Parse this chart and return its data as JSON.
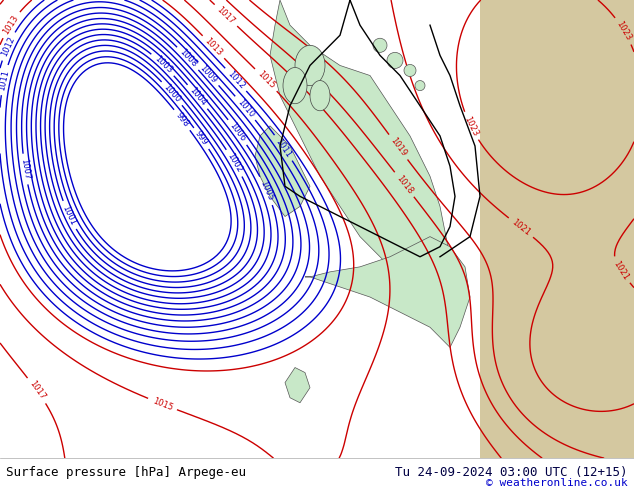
{
  "title_left": "Surface pressure [hPa] Arpege-eu",
  "title_right": "Tu 24-09-2024 03:00 UTC (12+15)",
  "copyright": "© weatheronline.co.uk",
  "bg_color_main": "#e8e8e8",
  "bg_color_land": "#c8e8c8",
  "bg_color_sea": "#ddeeff",
  "bg_color_right": "#d4c8a0",
  "bg_color_bottom_bar": "#ffffff",
  "text_color_left": "#000000",
  "text_color_right": "#000044",
  "text_color_copyright": "#0000cc",
  "contour_color_low": "#0000cc",
  "contour_color_high": "#cc0000",
  "contour_color_border": "#000000",
  "bottom_bar_height": 30,
  "fig_width": 6.34,
  "fig_height": 4.9,
  "dpi": 100
}
